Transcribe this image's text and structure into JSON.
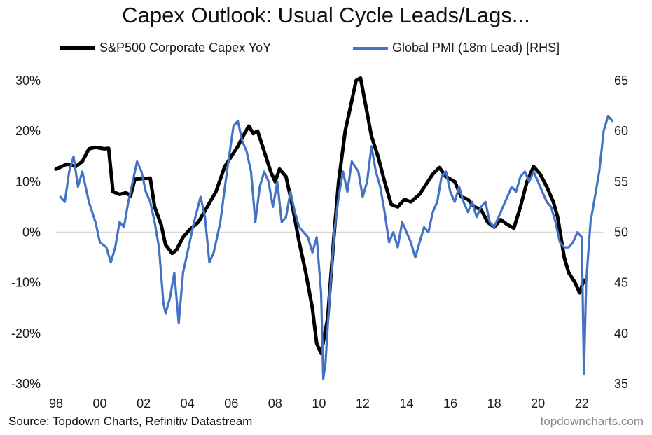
{
  "title": "Capex Outlook: Usual Cycle Leads/Lags...",
  "source": "Source: Topdown Charts, Refinitiv Datastream",
  "watermark": "topdowncharts.com",
  "chart_data": {
    "type": "line",
    "title": "Capex Outlook: Usual Cycle Leads/Lags...",
    "legend_position": "top",
    "grid": false,
    "x_ticks": [
      "98",
      "00",
      "02",
      "04",
      "06",
      "08",
      "10",
      "12",
      "14",
      "16",
      "18",
      "20",
      "22"
    ],
    "x_range": [
      1998,
      2023
    ],
    "y_left": {
      "ticks": [
        "30%",
        "20%",
        "10%",
        "0%",
        "-10%",
        "-20%",
        "-30%"
      ],
      "range": [
        -30,
        30
      ]
    },
    "y_right": {
      "ticks": [
        "65",
        "60",
        "55",
        "50",
        "45",
        "40",
        "35"
      ],
      "range": [
        35,
        65
      ]
    },
    "series": [
      {
        "name": "S&P500 Corporate Capex YoY",
        "axis": "left",
        "color": "#000000",
        "points": [
          [
            1998.0,
            12.5
          ],
          [
            1998.5,
            13.5
          ],
          [
            1998.9,
            13.0
          ],
          [
            1999.2,
            14.0
          ],
          [
            1999.5,
            16.5
          ],
          [
            1999.8,
            16.8
          ],
          [
            2000.2,
            16.5
          ],
          [
            2000.4,
            16.6
          ],
          [
            2000.6,
            8.0
          ],
          [
            2000.9,
            7.5
          ],
          [
            2001.2,
            7.8
          ],
          [
            2001.4,
            7.2
          ],
          [
            2001.6,
            10.5
          ],
          [
            2001.9,
            10.6
          ],
          [
            2002.3,
            10.7
          ],
          [
            2002.5,
            5.0
          ],
          [
            2002.8,
            1.5
          ],
          [
            2003.0,
            -2.5
          ],
          [
            2003.3,
            -4.2
          ],
          [
            2003.5,
            -3.5
          ],
          [
            2003.8,
            -1.0
          ],
          [
            2004.1,
            0.5
          ],
          [
            2004.5,
            2.0
          ],
          [
            2004.9,
            5.0
          ],
          [
            2005.3,
            8.0
          ],
          [
            2005.7,
            13.0
          ],
          [
            2006.0,
            15.0
          ],
          [
            2006.3,
            17.0
          ],
          [
            2006.6,
            19.5
          ],
          [
            2006.8,
            21.0
          ],
          [
            2007.0,
            19.5
          ],
          [
            2007.2,
            20.0
          ],
          [
            2007.5,
            16.0
          ],
          [
            2007.8,
            12.0
          ],
          [
            2008.0,
            10.0
          ],
          [
            2008.2,
            12.5
          ],
          [
            2008.5,
            11.0
          ],
          [
            2008.8,
            5.0
          ],
          [
            2009.1,
            -2.0
          ],
          [
            2009.4,
            -8.0
          ],
          [
            2009.7,
            -15.0
          ],
          [
            2009.9,
            -22.0
          ],
          [
            2010.1,
            -24.0
          ],
          [
            2010.4,
            -17.0
          ],
          [
            2010.7,
            0.0
          ],
          [
            2010.9,
            10.0
          ],
          [
            2011.2,
            20.0
          ],
          [
            2011.5,
            26.0
          ],
          [
            2011.7,
            30.0
          ],
          [
            2011.9,
            30.5
          ],
          [
            2012.1,
            26.0
          ],
          [
            2012.4,
            19.0
          ],
          [
            2012.7,
            15.0
          ],
          [
            2013.0,
            10.0
          ],
          [
            2013.3,
            5.5
          ],
          [
            2013.6,
            5.0
          ],
          [
            2013.9,
            6.5
          ],
          [
            2014.2,
            6.0
          ],
          [
            2014.6,
            7.5
          ],
          [
            2014.9,
            9.5
          ],
          [
            2015.2,
            11.5
          ],
          [
            2015.5,
            12.8
          ],
          [
            2015.8,
            11.0
          ],
          [
            2016.2,
            10.0
          ],
          [
            2016.5,
            7.0
          ],
          [
            2016.8,
            6.5
          ],
          [
            2017.1,
            5.0
          ],
          [
            2017.4,
            4.5
          ],
          [
            2017.7,
            2.0
          ],
          [
            2018.0,
            1.0
          ],
          [
            2018.3,
            2.5
          ],
          [
            2018.6,
            1.5
          ],
          [
            2018.9,
            0.8
          ],
          [
            2019.2,
            5.0
          ],
          [
            2019.5,
            10.0
          ],
          [
            2019.8,
            13.0
          ],
          [
            2020.1,
            11.5
          ],
          [
            2020.4,
            9.0
          ],
          [
            2020.7,
            6.0
          ],
          [
            2020.9,
            3.0
          ],
          [
            2021.2,
            -5.0
          ],
          [
            2021.4,
            -8.0
          ],
          [
            2021.7,
            -10.0
          ],
          [
            2021.9,
            -12.0
          ],
          [
            2022.1,
            -9.5
          ]
        ]
      },
      {
        "name": "Global PMI (18m Lead) [RHS]",
        "axis": "right",
        "color": "#4472c4",
        "points": [
          [
            1998.2,
            53.5
          ],
          [
            1998.4,
            53.0
          ],
          [
            1998.6,
            56.0
          ],
          [
            1998.8,
            57.5
          ],
          [
            1999.0,
            54.5
          ],
          [
            1999.2,
            56.0
          ],
          [
            1999.5,
            53.0
          ],
          [
            1999.8,
            51.0
          ],
          [
            2000.0,
            49.0
          ],
          [
            2000.3,
            48.5
          ],
          [
            2000.5,
            47.0
          ],
          [
            2000.7,
            48.5
          ],
          [
            2000.9,
            51.0
          ],
          [
            2001.1,
            50.5
          ],
          [
            2001.3,
            53.0
          ],
          [
            2001.5,
            55.0
          ],
          [
            2001.7,
            57.0
          ],
          [
            2001.9,
            56.0
          ],
          [
            2002.1,
            54.0
          ],
          [
            2002.3,
            53.0
          ],
          [
            2002.5,
            51.0
          ],
          [
            2002.7,
            48.5
          ],
          [
            2002.9,
            43.0
          ],
          [
            2003.0,
            42.0
          ],
          [
            2003.2,
            43.5
          ],
          [
            2003.4,
            46.0
          ],
          [
            2003.6,
            41.0
          ],
          [
            2003.8,
            46.0
          ],
          [
            2004.0,
            48.0
          ],
          [
            2004.3,
            51.0
          ],
          [
            2004.6,
            53.5
          ],
          [
            2004.8,
            51.5
          ],
          [
            2005.0,
            47.0
          ],
          [
            2005.2,
            48.0
          ],
          [
            2005.5,
            51.0
          ],
          [
            2005.8,
            56.0
          ],
          [
            2006.1,
            60.5
          ],
          [
            2006.3,
            61.0
          ],
          [
            2006.5,
            59.0
          ],
          [
            2006.7,
            58.0
          ],
          [
            2006.9,
            56.0
          ],
          [
            2007.1,
            51.0
          ],
          [
            2007.3,
            54.5
          ],
          [
            2007.5,
            56.0
          ],
          [
            2007.7,
            55.0
          ],
          [
            2007.9,
            52.5
          ],
          [
            2008.1,
            55.0
          ],
          [
            2008.3,
            51.0
          ],
          [
            2008.5,
            51.5
          ],
          [
            2008.7,
            54.0
          ],
          [
            2008.9,
            52.0
          ],
          [
            2009.1,
            50.5
          ],
          [
            2009.3,
            50.0
          ],
          [
            2009.5,
            49.5
          ],
          [
            2009.7,
            48.0
          ],
          [
            2009.9,
            49.5
          ],
          [
            2010.1,
            44.0
          ],
          [
            2010.2,
            35.5
          ],
          [
            2010.3,
            37.0
          ],
          [
            2010.5,
            44.0
          ],
          [
            2010.7,
            50.0
          ],
          [
            2010.9,
            53.5
          ],
          [
            2011.1,
            56.0
          ],
          [
            2011.3,
            54.0
          ],
          [
            2011.5,
            57.0
          ],
          [
            2011.8,
            56.0
          ],
          [
            2012.0,
            53.5
          ],
          [
            2012.2,
            55.0
          ],
          [
            2012.4,
            58.5
          ],
          [
            2012.6,
            56.0
          ],
          [
            2012.8,
            54.5
          ],
          [
            2013.0,
            52.0
          ],
          [
            2013.2,
            49.0
          ],
          [
            2013.4,
            50.0
          ],
          [
            2013.6,
            48.5
          ],
          [
            2013.8,
            51.0
          ],
          [
            2014.0,
            50.0
          ],
          [
            2014.2,
            49.0
          ],
          [
            2014.4,
            47.5
          ],
          [
            2014.6,
            49.0
          ],
          [
            2014.8,
            50.5
          ],
          [
            2015.0,
            50.0
          ],
          [
            2015.2,
            52.0
          ],
          [
            2015.4,
            53.0
          ],
          [
            2015.6,
            55.5
          ],
          [
            2015.8,
            56.0
          ],
          [
            2016.0,
            54.0
          ],
          [
            2016.2,
            53.0
          ],
          [
            2016.4,
            54.5
          ],
          [
            2016.6,
            53.0
          ],
          [
            2016.8,
            52.0
          ],
          [
            2017.0,
            53.0
          ],
          [
            2017.2,
            51.5
          ],
          [
            2017.4,
            52.5
          ],
          [
            2017.6,
            53.0
          ],
          [
            2017.8,
            51.0
          ],
          [
            2018.0,
            50.5
          ],
          [
            2018.2,
            51.5
          ],
          [
            2018.4,
            52.5
          ],
          [
            2018.6,
            53.5
          ],
          [
            2018.8,
            54.5
          ],
          [
            2019.0,
            54.0
          ],
          [
            2019.2,
            55.5
          ],
          [
            2019.4,
            56.0
          ],
          [
            2019.6,
            55.0
          ],
          [
            2019.8,
            56.0
          ],
          [
            2020.0,
            55.0
          ],
          [
            2020.2,
            54.0
          ],
          [
            2020.4,
            53.0
          ],
          [
            2020.6,
            52.5
          ],
          [
            2020.8,
            51.0
          ],
          [
            2021.0,
            49.0
          ],
          [
            2021.2,
            48.5
          ],
          [
            2021.4,
            48.5
          ],
          [
            2021.6,
            49.0
          ],
          [
            2021.8,
            50.0
          ],
          [
            2022.0,
            49.5
          ],
          [
            2022.1,
            36.0
          ],
          [
            2022.2,
            45.0
          ],
          [
            2022.3,
            48.0
          ],
          [
            2022.4,
            51.0
          ],
          [
            2022.6,
            53.5
          ],
          [
            2022.8,
            56.0
          ],
          [
            2023.0,
            60.0
          ],
          [
            2023.2,
            61.5
          ],
          [
            2023.4,
            61.0
          ]
        ]
      }
    ]
  }
}
